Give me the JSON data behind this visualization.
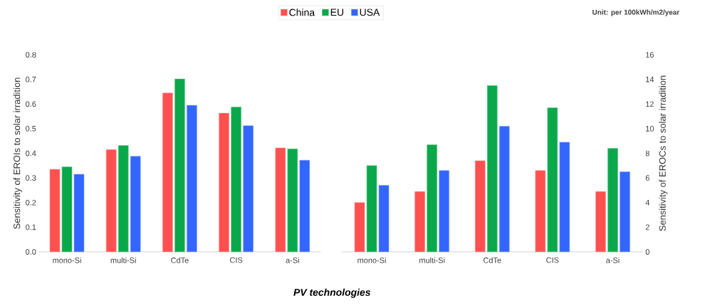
{
  "chart_data": [
    {
      "type": "bar",
      "ylabel": "Sensitivity of EROIs to solar irradition",
      "xlabel": "PV technologies",
      "legend": "top",
      "categories": [
        "mono-Si",
        "multi-Si",
        "CdTe",
        "CIS",
        "a-Si"
      ],
      "ylim": [
        0,
        0.8
      ],
      "yticks": [
        {
          "value": 0,
          "label": "0.0"
        },
        {
          "value": 0.1,
          "label": "0.1"
        },
        {
          "value": 0.2,
          "label": "0.2"
        },
        {
          "value": 0.3,
          "label": "0.3"
        },
        {
          "value": 0.4,
          "label": "0.4"
        },
        {
          "value": 0.5,
          "label": "0.5"
        },
        {
          "value": 0.6,
          "label": "0.6"
        },
        {
          "value": 0.7,
          "label": "0.7"
        },
        {
          "value": 0.8,
          "label": "0.8"
        }
      ],
      "series": [
        {
          "name": "China",
          "color": "#ff5050",
          "values": [
            0.335,
            0.415,
            0.645,
            0.563,
            0.422
          ]
        },
        {
          "name": "EU",
          "color": "#0aa84a",
          "values": [
            0.345,
            0.432,
            0.702,
            0.588,
            0.418
          ]
        },
        {
          "name": "USA",
          "color": "#3366ff",
          "values": [
            0.315,
            0.388,
            0.595,
            0.512,
            0.372
          ]
        }
      ]
    },
    {
      "type": "bar",
      "ylabel": "Sensitivity of EROCs to solar irradition",
      "annotations": [
        "Unit: per 100kWh/m2/year"
      ],
      "categories": [
        "mono-Si",
        "multi-Si",
        "CdTe",
        "CIS",
        "a-Si"
      ],
      "ylim": [
        0,
        16
      ],
      "yticks": [
        0,
        2,
        4,
        6,
        8,
        10,
        12,
        14,
        16
      ],
      "series": [
        {
          "color": "#ff5050",
          "values": [
            4.0,
            4.9,
            7.4,
            6.6,
            4.9
          ]
        },
        {
          "color": "#0aa84a",
          "values": [
            7.0,
            8.7,
            13.5,
            11.7,
            8.4
          ]
        },
        {
          "color": "#3366ff",
          "values": [
            5.4,
            6.6,
            10.2,
            8.9,
            6.5
          ]
        }
      ]
    }
  ]
}
